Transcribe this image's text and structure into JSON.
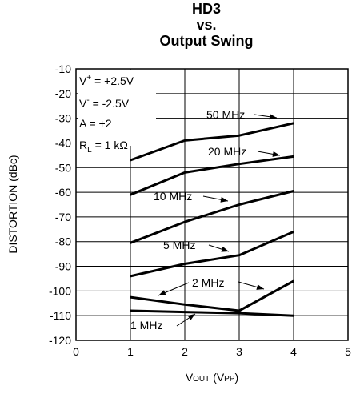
{
  "chart_data": {
    "type": "line",
    "title_lines": [
      "HD3",
      "vs.",
      "Output Swing"
    ],
    "xlabel": "VOUT (VPP)",
    "xlabel_parts": {
      "main": "V",
      "main_sub": "OUT",
      "unit_open": " (V",
      "unit_sub": "PP",
      "unit_close": ")"
    },
    "ylabel": "DISTORTION (dBc)",
    "xlim": [
      0,
      5
    ],
    "ylim": [
      -120,
      -10
    ],
    "x_ticks": [
      0,
      1,
      2,
      3,
      4,
      5
    ],
    "y_ticks": [
      -10,
      -20,
      -30,
      -40,
      -50,
      -60,
      -70,
      -80,
      -90,
      -100,
      -110,
      -120
    ],
    "grid": true,
    "conditions": {
      "vplus": {
        "sym": "V",
        "sup": "+",
        "rest": " = +2.5V"
      },
      "vminus": {
        "sym": "V",
        "sup": "-",
        "rest": " = -2.5V"
      },
      "gain": "A = +2",
      "rl": {
        "sym": "R",
        "sub": "L",
        "rest": " = 1 kΩ"
      }
    },
    "series": [
      {
        "name": "50 MHz",
        "x": [
          1,
          2,
          3,
          4
        ],
        "y": [
          -47,
          -39,
          -37,
          -32
        ]
      },
      {
        "name": "20 MHz",
        "x": [
          1,
          2,
          3,
          4
        ],
        "y": [
          -61,
          -52,
          -48.5,
          -45.5
        ]
      },
      {
        "name": "10 MHz",
        "x": [
          1,
          2,
          3,
          4
        ],
        "y": [
          -80.5,
          -72,
          -65,
          -59.5
        ]
      },
      {
        "name": "5 MHz",
        "x": [
          1,
          2,
          3,
          4
        ],
        "y": [
          -94,
          -89,
          -85.5,
          -76
        ]
      },
      {
        "name": "2 MHz",
        "x": [
          1,
          2,
          3,
          4
        ],
        "y": [
          -102.5,
          -105.5,
          -108,
          -96
        ]
      },
      {
        "name": "1 MHz",
        "x": [
          1,
          2,
          3,
          4
        ],
        "y": [
          -108,
          -108.5,
          -109,
          -110
        ]
      }
    ]
  }
}
